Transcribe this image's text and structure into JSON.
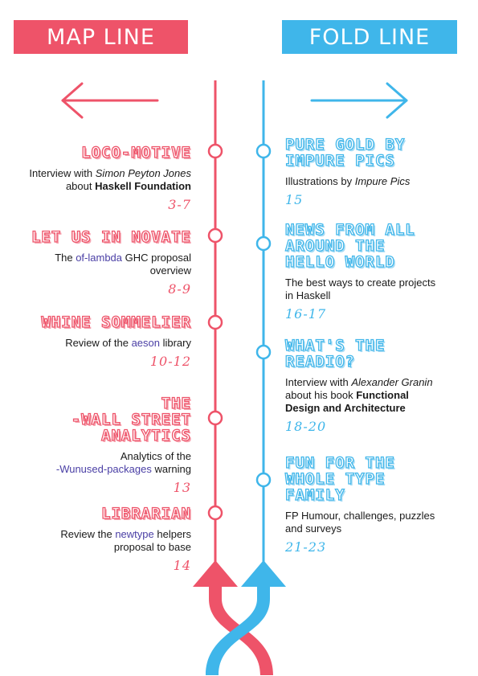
{
  "header": {
    "left_banner": "MAP LINE",
    "right_banner": "FOLD LINE"
  },
  "colors": {
    "map_line": "#ee5369",
    "fold_line": "#3fb6ea",
    "link": "#4a3fa5"
  },
  "map_line": [
    {
      "title": "LOCO-MOTIVE",
      "desc": {
        "a": "Interview with ",
        "b": "Simon Peyton Jones",
        "c": "about ",
        "d": "Haskell Foundation"
      },
      "pages": "3-7"
    },
    {
      "title": "LET US IN NOVATE",
      "desc": {
        "a": "The ",
        "b": "of-lambda",
        "c": " GHC proposal",
        "d": "overview"
      },
      "pages": "8-9"
    },
    {
      "title": "WHINE SOMMELIER",
      "desc": {
        "a": "Review of the ",
        "b": "aeson",
        "c": " library"
      },
      "pages": "10-12"
    },
    {
      "title_lines": [
        "THE",
        "-WALL STREET",
        "ANALYTICS"
      ],
      "desc": {
        "a": "Analytics of the",
        "b": "-Wunused-packages",
        "c": " warning"
      },
      "pages": "13"
    },
    {
      "title": "LIBRARIAN",
      "desc": {
        "a": "Review the ",
        "b": "newtype",
        "c": " helpers",
        "d": "proposal to base"
      },
      "pages": "14"
    }
  ],
  "fold_line": [
    {
      "title_lines": [
        "PURE GOLD BY",
        "IMPURE PICS"
      ],
      "desc": {
        "a": "Illustrations by ",
        "b": "Impure Pics"
      },
      "pages": "15"
    },
    {
      "title_lines": [
        "NEWS FROM ALL",
        "AROUND THE",
        "HELLO WORLD"
      ],
      "desc": {
        "a": "The best ways to create projects",
        "b": "in Haskell"
      },
      "pages": "16-17"
    },
    {
      "title_lines": [
        "WHAT'S THE",
        "READIO?"
      ],
      "desc": {
        "a": "Interview with ",
        "b": "Alexander Granin",
        "c": "about his book ",
        "d": "Functional",
        "e": "Design and Architecture"
      },
      "pages": "18-20"
    },
    {
      "title_lines": [
        "FUN FOR THE",
        "WHOLE TYPE",
        "FAMILY"
      ],
      "desc": {
        "a": "FP Humour, challenges, puzzles",
        "b": "and surveys"
      },
      "pages": "21-23"
    }
  ]
}
